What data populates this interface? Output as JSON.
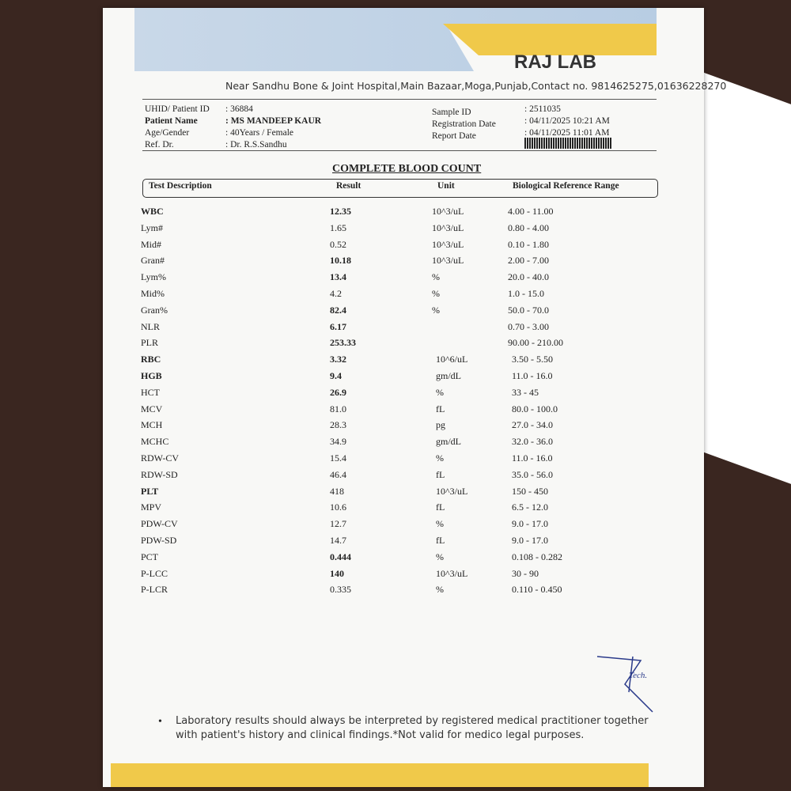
{
  "header": {
    "lab_name": "RAJ LAB",
    "address": "Near Sandhu Bone & Joint Hospital,Main Bazaar,Moga,Punjab,Contact no. 9814625275,01636228270"
  },
  "patient": {
    "left": [
      [
        "UHID/ Patient ID",
        ": 36884"
      ],
      [
        "Patient Name",
        ": MS MANDEEP KAUR"
      ],
      [
        "Age/Gender",
        ": 40Years / Female"
      ],
      [
        "Ref. Dr.",
        ": Dr. R.S.Sandhu"
      ]
    ],
    "right": [
      [
        "Sample ID",
        ": 2511035"
      ],
      [
        "Registration Date",
        ": 04/11/2025 10:21 AM"
      ],
      [
        "Report Date",
        ": 04/11/2025 11:01 AM"
      ]
    ]
  },
  "report": {
    "title": "COMPLETE BLOOD COUNT",
    "columns": [
      "Test Description",
      "Result",
      "Unit",
      "Biological Reference Range"
    ],
    "rows": [
      [
        "WBC",
        "12.35",
        "10^3/uL",
        "4.00 - 11.00"
      ],
      [
        "Lym#",
        "1.65",
        "10^3/uL",
        "0.80 - 4.00"
      ],
      [
        "Mid#",
        "0.52",
        "10^3/uL",
        "0.10 - 1.80"
      ],
      [
        "Gran#",
        "10.18",
        "10^3/uL",
        "2.00 - 7.00"
      ],
      [
        "Lym%",
        "13.4",
        "%",
        "20.0 - 40.0"
      ],
      [
        "Mid%",
        "4.2",
        "%",
        "1.0 - 15.0"
      ],
      [
        "Gran%",
        "82.4",
        "%",
        "50.0 - 70.0"
      ],
      [
        "NLR",
        "6.17",
        null,
        "0.70 - 3.00"
      ],
      [
        "PLR",
        "253.33",
        null,
        "90.00 - 210.00"
      ],
      [
        "RBC",
        "3.32",
        "10^6/uL",
        "3.50 - 5.50"
      ],
      [
        "HGB",
        "9.4",
        "gm/dL",
        "11.0 - 16.0"
      ],
      [
        "HCT",
        "26.9",
        "%",
        "33 - 45"
      ],
      [
        "MCV",
        "81.0",
        "fL",
        "80.0 - 100.0"
      ],
      [
        "MCH",
        "28.3",
        "pg",
        "27.0 - 34.0"
      ],
      [
        "MCHC",
        "34.9",
        "gm/dL",
        "32.0 - 36.0"
      ],
      [
        "RDW-CV",
        "15.4",
        "%",
        "11.0 - 16.0"
      ],
      [
        "RDW-SD",
        "46.4",
        "fL",
        "35.0 - 56.0"
      ],
      [
        "PLT",
        "418",
        "10^3/uL",
        "150 - 450"
      ],
      [
        "MPV",
        "10.6",
        "fL",
        "6.5 - 12.0"
      ],
      [
        "PDW-CV",
        "12.7",
        "%",
        "9.0 - 17.0"
      ],
      [
        "PDW-SD",
        "14.7",
        "fL",
        "9.0 - 17.0"
      ],
      [
        "PCT",
        "0.444",
        "%",
        "0.108 - 0.282"
      ],
      [
        "P-LCC",
        "140",
        "10^3/uL",
        "30 - 90"
      ],
      [
        "P-LCR",
        "0.335",
        "%",
        "0.110 - 0.450"
      ]
    ]
  },
  "footer": {
    "note": "Laboratory results should always be interpreted by registered medical practitioner together with patient's history and clinical findings.*Not valid for medico legal purposes.",
    "signature": "Tech."
  }
}
